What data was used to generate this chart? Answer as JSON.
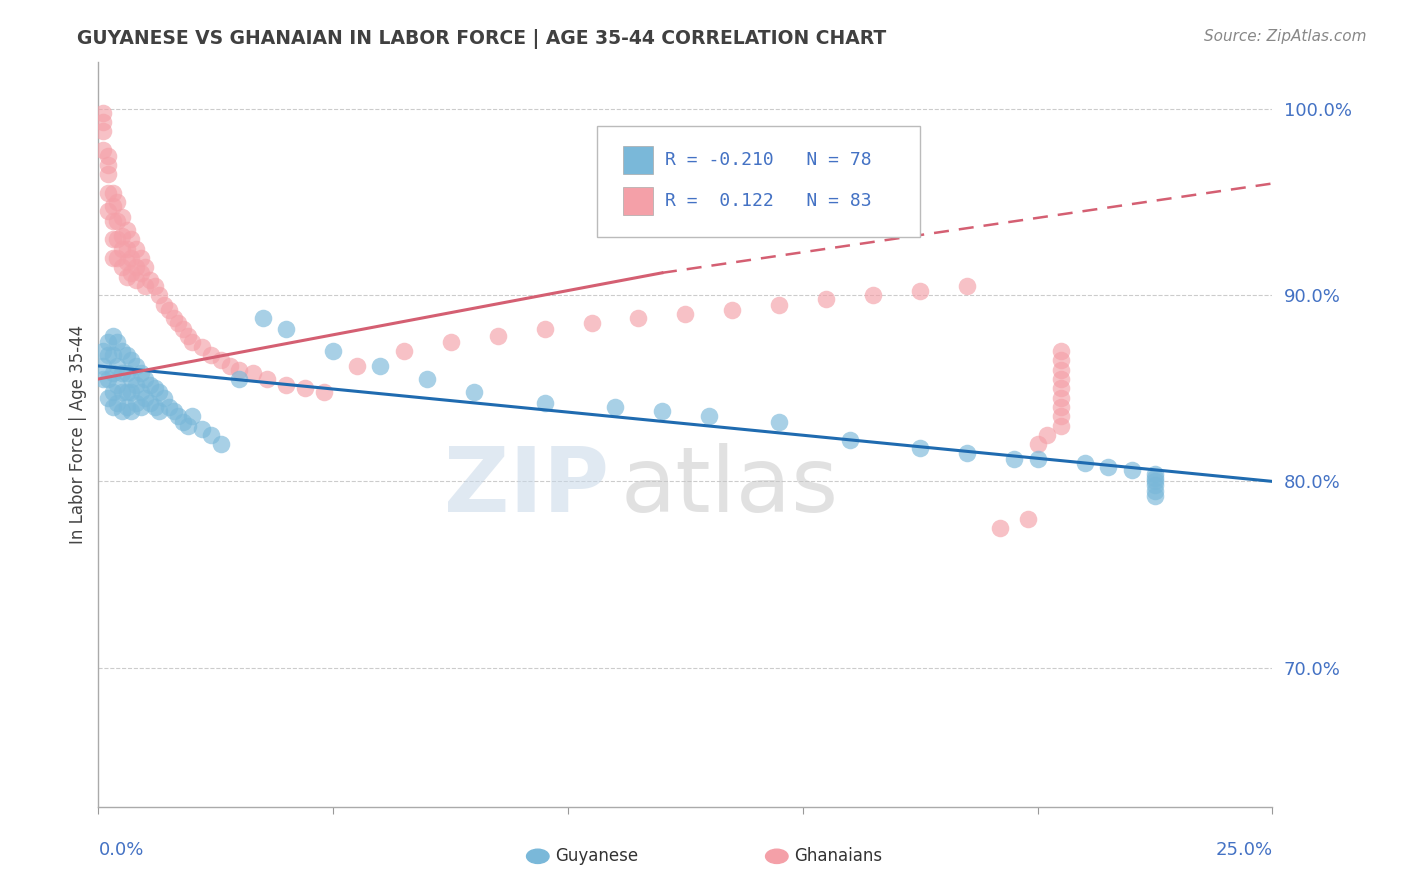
{
  "title": "GUYANESE VS GHANAIAN IN LABOR FORCE | AGE 35-44 CORRELATION CHART",
  "source": "Source: ZipAtlas.com",
  "ylabel": "In Labor Force | Age 35-44",
  "xlim": [
    0.0,
    0.25
  ],
  "ylim": [
    0.625,
    1.025
  ],
  "guyanese_color": "#7ab8d9",
  "ghanaian_color": "#f4a0a8",
  "guyanese_line_color": "#1f6bb0",
  "ghanaian_line_color": "#d45f72",
  "ytick_color": "#4472c4",
  "title_color": "#404040",
  "source_color": "#888888",
  "guy_trend": [
    0.0,
    0.862,
    0.25,
    0.8
  ],
  "gha_trend_solid": [
    0.0,
    0.855,
    0.12,
    0.912
  ],
  "gha_trend_dashed": [
    0.12,
    0.912,
    0.25,
    0.96
  ],
  "guy_x": [
    0.001,
    0.001,
    0.001,
    0.002,
    0.002,
    0.002,
    0.002,
    0.003,
    0.003,
    0.003,
    0.003,
    0.003,
    0.004,
    0.004,
    0.004,
    0.004,
    0.005,
    0.005,
    0.005,
    0.005,
    0.006,
    0.006,
    0.006,
    0.006,
    0.007,
    0.007,
    0.007,
    0.007,
    0.008,
    0.008,
    0.008,
    0.009,
    0.009,
    0.009,
    0.01,
    0.01,
    0.011,
    0.011,
    0.012,
    0.012,
    0.013,
    0.013,
    0.014,
    0.015,
    0.016,
    0.017,
    0.018,
    0.019,
    0.02,
    0.022,
    0.024,
    0.026,
    0.03,
    0.035,
    0.04,
    0.05,
    0.06,
    0.07,
    0.08,
    0.095,
    0.11,
    0.12,
    0.13,
    0.145,
    0.16,
    0.175,
    0.185,
    0.195,
    0.2,
    0.21,
    0.215,
    0.22,
    0.225,
    0.225,
    0.225,
    0.225,
    0.225,
    0.225
  ],
  "guy_y": [
    0.87,
    0.862,
    0.855,
    0.875,
    0.868,
    0.855,
    0.845,
    0.878,
    0.868,
    0.858,
    0.848,
    0.84,
    0.875,
    0.862,
    0.852,
    0.842,
    0.87,
    0.858,
    0.848,
    0.838,
    0.868,
    0.858,
    0.848,
    0.84,
    0.865,
    0.855,
    0.848,
    0.838,
    0.862,
    0.852,
    0.842,
    0.858,
    0.848,
    0.84,
    0.855,
    0.845,
    0.852,
    0.842,
    0.85,
    0.84,
    0.848,
    0.838,
    0.845,
    0.84,
    0.838,
    0.835,
    0.832,
    0.83,
    0.835,
    0.828,
    0.825,
    0.82,
    0.855,
    0.888,
    0.882,
    0.87,
    0.862,
    0.855,
    0.848,
    0.842,
    0.84,
    0.838,
    0.835,
    0.832,
    0.822,
    0.818,
    0.815,
    0.812,
    0.812,
    0.81,
    0.808,
    0.806,
    0.804,
    0.802,
    0.8,
    0.798,
    0.795,
    0.792
  ],
  "gha_x": [
    0.001,
    0.001,
    0.001,
    0.001,
    0.002,
    0.002,
    0.002,
    0.002,
    0.002,
    0.003,
    0.003,
    0.003,
    0.003,
    0.003,
    0.004,
    0.004,
    0.004,
    0.004,
    0.005,
    0.005,
    0.005,
    0.005,
    0.006,
    0.006,
    0.006,
    0.006,
    0.007,
    0.007,
    0.007,
    0.008,
    0.008,
    0.008,
    0.009,
    0.009,
    0.01,
    0.01,
    0.011,
    0.012,
    0.013,
    0.014,
    0.015,
    0.016,
    0.017,
    0.018,
    0.019,
    0.02,
    0.022,
    0.024,
    0.026,
    0.028,
    0.03,
    0.033,
    0.036,
    0.04,
    0.044,
    0.048,
    0.055,
    0.065,
    0.075,
    0.085,
    0.095,
    0.105,
    0.115,
    0.125,
    0.135,
    0.145,
    0.155,
    0.165,
    0.175,
    0.185,
    0.192,
    0.198,
    0.2,
    0.202,
    0.205,
    0.205,
    0.205,
    0.205,
    0.205,
    0.205,
    0.205,
    0.205,
    0.205
  ],
  "gha_y": [
    0.998,
    0.993,
    0.988,
    0.978,
    0.975,
    0.97,
    0.965,
    0.955,
    0.945,
    0.955,
    0.948,
    0.94,
    0.93,
    0.92,
    0.95,
    0.94,
    0.93,
    0.92,
    0.942,
    0.932,
    0.925,
    0.915,
    0.935,
    0.925,
    0.918,
    0.91,
    0.93,
    0.92,
    0.912,
    0.925,
    0.915,
    0.908,
    0.92,
    0.912,
    0.915,
    0.905,
    0.908,
    0.905,
    0.9,
    0.895,
    0.892,
    0.888,
    0.885,
    0.882,
    0.878,
    0.875,
    0.872,
    0.868,
    0.865,
    0.862,
    0.86,
    0.858,
    0.855,
    0.852,
    0.85,
    0.848,
    0.862,
    0.87,
    0.875,
    0.878,
    0.882,
    0.885,
    0.888,
    0.89,
    0.892,
    0.895,
    0.898,
    0.9,
    0.902,
    0.905,
    0.775,
    0.78,
    0.82,
    0.825,
    0.83,
    0.835,
    0.84,
    0.845,
    0.85,
    0.855,
    0.86,
    0.865,
    0.87
  ]
}
